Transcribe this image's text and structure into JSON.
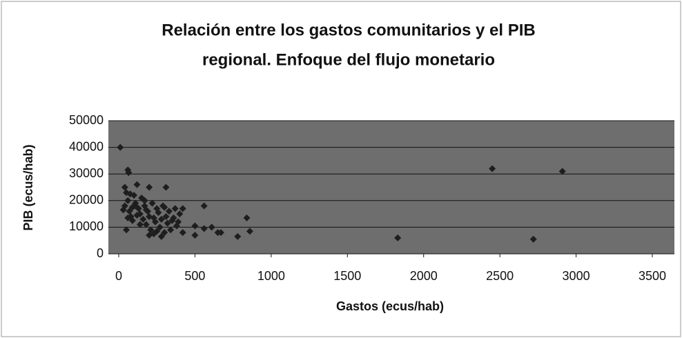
{
  "chart_data": {
    "type": "scatter",
    "title": "Relación entre los gastos comunitarios y el PIB",
    "subtitle": "regional. Enfoque del flujo monetario",
    "x_label": "Gastos (ecus/hab)",
    "y_label": "PIB (ecus/hab)",
    "color": "#1e1e1e",
    "grid": true,
    "xlim": [
      0,
      3500
    ],
    "xticks": [
      0,
      500,
      1000,
      1500,
      2000,
      2500,
      3000,
      3500
    ],
    "ylim": [
      0,
      50000
    ],
    "yticks": [
      0,
      10000,
      20000,
      30000,
      40000,
      50000
    ],
    "x": [
      10,
      60,
      65,
      2450,
      2910,
      1830,
      2720,
      840,
      860,
      780,
      560,
      500,
      500,
      560,
      610,
      650,
      670,
      420,
      420,
      310,
      200,
      120,
      50,
      40,
      50,
      60,
      40,
      70,
      80,
      90,
      100,
      110,
      130,
      140,
      150,
      160,
      170,
      180,
      190,
      200,
      210,
      220,
      230,
      240,
      250,
      260,
      270,
      280,
      290,
      300,
      310,
      320,
      330,
      340,
      350,
      360,
      370,
      380,
      390,
      400,
      60,
      90,
      120,
      140,
      170,
      230,
      250,
      200,
      280,
      30,
      75,
      110,
      180,
      300
    ],
    "values": [
      40000,
      31500,
      30500,
      32000,
      31000,
      6000,
      5500,
      13500,
      8500,
      6500,
      18000,
      10500,
      7000,
      9500,
      10000,
      8000,
      8000,
      17000,
      8000,
      25000,
      25000,
      26000,
      9000,
      25000,
      23000,
      20000,
      18000,
      16000,
      14000,
      12500,
      22000,
      19000,
      17000,
      15000,
      21000,
      13000,
      18000,
      11000,
      16000,
      14000,
      9000,
      19000,
      7500,
      12000,
      17000,
      15500,
      10000,
      13000,
      18000,
      8000,
      14000,
      11500,
      16000,
      9000,
      12500,
      13500,
      17000,
      10500,
      12000,
      15000,
      13500,
      17500,
      14500,
      11000,
      20000,
      13500,
      8500,
      7000,
      6500,
      16500,
      22500,
      18000,
      16500,
      17500
    ]
  }
}
